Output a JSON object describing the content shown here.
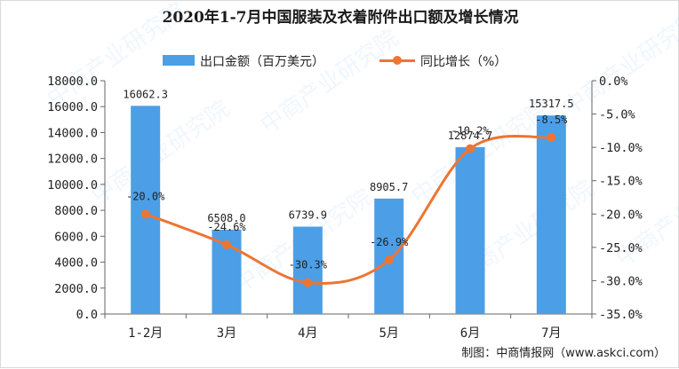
{
  "title": "2020年1-7月中国服装及衣着附件出口额及增长情况",
  "source": "制图：中商情报网（www.askci.com）",
  "watermark": "中商产业研究院",
  "colors": {
    "bar": "#4c9fe6",
    "line": "#ed7533",
    "axis": "#666666",
    "text": "#222222"
  },
  "chart_data": {
    "type": "bar",
    "categories": [
      "1-2月",
      "3月",
      "4月",
      "5月",
      "6月",
      "7月"
    ],
    "series": [
      {
        "name": "出口金额（百万美元）",
        "type": "bar",
        "axis": "left",
        "values": [
          16062.3,
          6508.0,
          6739.9,
          8905.7,
          12874.7,
          15317.5
        ],
        "labels": [
          "16062.3",
          "6508.0",
          "6739.9",
          "8905.7",
          "12874.7",
          "15317.5"
        ]
      },
      {
        "name": "同比增长（%）",
        "type": "line",
        "axis": "right",
        "values": [
          -20.0,
          -24.6,
          -30.3,
          -26.9,
          -10.2,
          -8.5
        ],
        "labels": [
          "-20.0%",
          "-24.6%",
          "-30.3%",
          "-26.9%",
          "-10.2%",
          "-8.5%"
        ]
      }
    ],
    "left_axis": {
      "ylim": [
        0,
        18000
      ],
      "ticks": [
        "0.0",
        "2000.0",
        "4000.0",
        "6000.0",
        "8000.0",
        "10000.0",
        "12000.0",
        "14000.0",
        "16000.0",
        "18000.0"
      ]
    },
    "right_axis": {
      "ylim": [
        -35,
        0
      ],
      "ticks": [
        "0.0%",
        "-5.0%",
        "-10.0%",
        "-15.0%",
        "-20.0%",
        "-25.0%",
        "-30.0%",
        "-35.0%"
      ]
    },
    "grid": false,
    "legend_position": "top-center"
  }
}
